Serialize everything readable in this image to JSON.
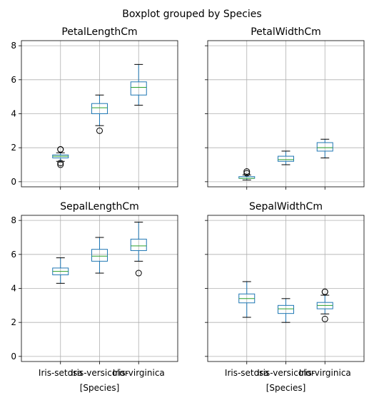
{
  "suptitle": "Boxplot grouped by Species",
  "chart_data": {
    "type": "boxplot",
    "shared_y": true,
    "ylim": [
      -0.3,
      8.3
    ],
    "yticks": [
      0,
      2,
      4,
      6,
      8
    ],
    "grid": true,
    "categories": [
      "Iris-setosa",
      "Iris-versicolor",
      "Iris-virginica"
    ],
    "xlabel": "[Species]",
    "colors": {
      "box": "#1f77b4",
      "median": "#2ca02c",
      "whisker": "#000000",
      "grid": "#b0b0b0",
      "axes": "#000000"
    },
    "panels": [
      {
        "title": "PetalLengthCm",
        "boxes": [
          {
            "whislo": 1.2,
            "q1": 1.4,
            "med": 1.5,
            "q3": 1.575,
            "whishi": 1.7,
            "fliers": [
              1.9,
              1.9,
              1.0,
              1.1
            ]
          },
          {
            "whislo": 3.3,
            "q1": 4.0,
            "med": 4.35,
            "q3": 4.6,
            "whishi": 5.1,
            "fliers": [
              3.0
            ]
          },
          {
            "whislo": 4.5,
            "q1": 5.1,
            "med": 5.55,
            "q3": 5.875,
            "whishi": 6.9,
            "fliers": []
          }
        ]
      },
      {
        "title": "PetalWidthCm",
        "boxes": [
          {
            "whislo": 0.1,
            "q1": 0.2,
            "med": 0.2,
            "q3": 0.3,
            "whishi": 0.4,
            "fliers": [
              0.5,
              0.6
            ]
          },
          {
            "whislo": 1.0,
            "q1": 1.2,
            "med": 1.3,
            "q3": 1.5,
            "whishi": 1.8,
            "fliers": []
          },
          {
            "whislo": 1.4,
            "q1": 1.8,
            "med": 2.0,
            "q3": 2.3,
            "whishi": 2.5,
            "fliers": []
          }
        ]
      },
      {
        "title": "SepalLengthCm",
        "boxes": [
          {
            "whislo": 4.3,
            "q1": 4.8,
            "med": 5.0,
            "q3": 5.2,
            "whishi": 5.8,
            "fliers": []
          },
          {
            "whislo": 4.9,
            "q1": 5.6,
            "med": 5.9,
            "q3": 6.3,
            "whishi": 7.0,
            "fliers": []
          },
          {
            "whislo": 5.6,
            "q1": 6.225,
            "med": 6.5,
            "q3": 6.9,
            "whishi": 7.9,
            "fliers": [
              4.9
            ]
          }
        ]
      },
      {
        "title": "SepalWidthCm",
        "boxes": [
          {
            "whislo": 2.3,
            "q1": 3.15,
            "med": 3.4,
            "q3": 3.675,
            "whishi": 4.4,
            "fliers": []
          },
          {
            "whislo": 2.0,
            "q1": 2.525,
            "med": 2.8,
            "q3": 3.0,
            "whishi": 3.4,
            "fliers": []
          },
          {
            "whislo": 2.5,
            "q1": 2.8,
            "med": 3.0,
            "q3": 3.175,
            "whishi": 3.6,
            "fliers": [
              3.8,
              3.8,
              2.2
            ]
          }
        ]
      }
    ]
  }
}
